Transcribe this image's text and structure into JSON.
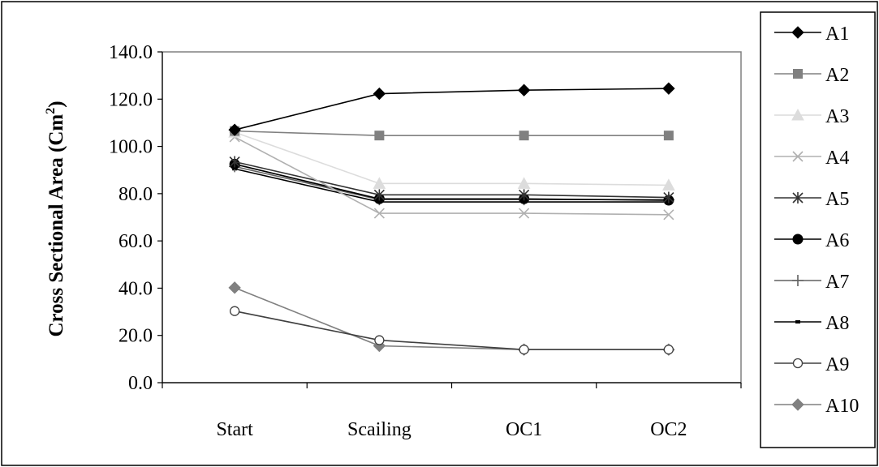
{
  "chart_data": {
    "type": "line",
    "categories": [
      "Start",
      "Scailing",
      "OC1",
      "OC2"
    ],
    "ylabel": "Cross Sectional Area (Cm",
    "ylabel_superscript": "2",
    "ylabel_suffix": ")",
    "ylim": [
      0,
      140
    ],
    "yticks": [
      "0.0",
      "20.0",
      "40.0",
      "60.0",
      "80.0",
      "100.0",
      "120.0",
      "140.0"
    ],
    "grid": false,
    "legend_position": "right",
    "series": [
      {
        "name": "A1",
        "values": [
          107,
          122.3,
          123.8,
          124.5
        ],
        "color": "#000000",
        "marker": "diamond-filled"
      },
      {
        "name": "A2",
        "values": [
          106.5,
          104.6,
          104.6,
          104.6
        ],
        "color": "#808080",
        "marker": "square-filled"
      },
      {
        "name": "A3",
        "values": [
          106,
          84.3,
          84.3,
          83.6
        ],
        "color": "#dcdcdc",
        "marker": "triangle-filled"
      },
      {
        "name": "A4",
        "values": [
          104,
          71.7,
          71.7,
          71.1
        ],
        "color": "#b0b0b0",
        "marker": "x"
      },
      {
        "name": "A5",
        "values": [
          93.5,
          79.5,
          79.5,
          78.4
        ],
        "color": "#333333",
        "marker": "asterisk"
      },
      {
        "name": "A6",
        "values": [
          92.5,
          77.8,
          77.8,
          77.2
        ],
        "color": "#000000",
        "marker": "circle-filled"
      },
      {
        "name": "A7",
        "values": [
          91.5,
          77.5,
          77.5,
          77.5
        ],
        "color": "#606060",
        "marker": "plus"
      },
      {
        "name": "A8",
        "values": [
          90.5,
          76.5,
          76.5,
          76.5
        ],
        "color": "#000000",
        "marker": "dash"
      },
      {
        "name": "A9",
        "values": [
          30.3,
          18,
          14,
          14
        ],
        "color": "#404040",
        "marker": "circle-open"
      },
      {
        "name": "A10",
        "values": [
          40.2,
          15.6,
          14,
          14
        ],
        "color": "#808080",
        "marker": "diamond-filled"
      }
    ]
  }
}
